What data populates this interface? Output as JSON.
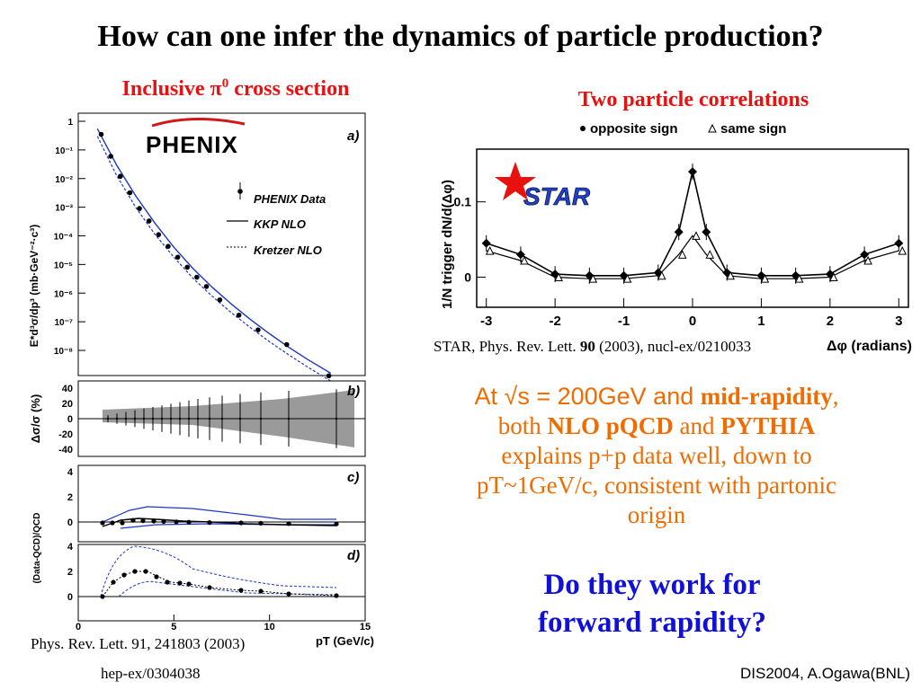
{
  "slide": {
    "title": "How can one infer the dynamics of particle production?",
    "footer_left": "hep-ex/0304038",
    "footer_right": "DIS2004, A.Ogawa(BNL)"
  },
  "left_figure": {
    "heading_prefix": "Inclusive ",
    "heading_pi": "π",
    "heading_sup": "0",
    "heading_suffix": " cross section",
    "logo": "PHENIX",
    "ylabel": "E*d³σ/dp³ (mb·GeV⁻²·c³)",
    "ylabel_b": "Δσ/σ (%)",
    "ylabel_cd": "(Data-QCD)/QCD",
    "xlabel": "pT (GeV/c)",
    "panel_a": "a)",
    "panel_b": "b)",
    "panel_c": "c)",
    "panel_d": "d)",
    "legend": [
      "PHENIX Data",
      "KKP NLO",
      "Kretzer NLO"
    ],
    "caption": "Phys. Rev. Lett. 91, 241803 (2003)"
  },
  "right_figure": {
    "heading": "Two particle correlations",
    "legend_opp": "opposite sign",
    "legend_same": "same sign",
    "logo": "STAR",
    "ylabel": "1/N trigger dN/d(Δφ)",
    "xlabel": "Δφ (radians)",
    "caption_prefix": "STAR, Phys. Rev. Lett. ",
    "caption_vol": "90",
    "caption_suffix": " (2003), nucl-ex/0210033"
  },
  "text": {
    "at": "At √s = 200GeV and ",
    "midrap": "mid-rapidity",
    "comma": ",",
    "both": "both ",
    "nlo": "NLO pQCD",
    "and": " and ",
    "pythia": "PYTHIA",
    "explains": "explains p+p data well, down to",
    "pt": "pT~1GeV/c,  consistent with partonic",
    "origin": "origin"
  },
  "question": [
    "Do they work for",
    "forward rapidity?"
  ],
  "colors": {
    "red": "#e8110f",
    "orange": "#f06b00",
    "blue": "#1010d8",
    "nlo_line": "#1c36c8"
  },
  "chart_data": [
    {
      "type": "scatter",
      "title": "",
      "xlabel": "pT (GeV/c)",
      "ylabel": "E*d³σ/dp³ (mb·GeV⁻²·c³)",
      "xlim": [
        0,
        15
      ],
      "ylim": [
        1e-09,
        3
      ],
      "log_y": true,
      "x_ticks": [
        0,
        5,
        10,
        15
      ],
      "y_tick_labels": [
        "1",
        "10⁻¹",
        "10⁻²",
        "10⁻³",
        "10⁻⁴",
        "10⁻⁵",
        "10⁻⁶",
        "10⁻⁷",
        "10⁻⁸"
      ],
      "series": [
        {
          "name": "PHENIX Data",
          "x": [
            1.2,
            1.7,
            2.2,
            2.7,
            3.2,
            3.7,
            4.2,
            4.7,
            5.2,
            5.7,
            6.2,
            6.7,
            7.4,
            8.4,
            9.4,
            10.9,
            13.1
          ],
          "y": [
            0.35,
            0.06,
            0.012,
            0.0032,
            0.0009,
            0.00033,
            0.00011,
            4.3e-05,
            1.8e-05,
            8e-06,
            3.6e-06,
            1.7e-06,
            5.8e-07,
            1.7e-07,
            5.2e-08,
            1.6e-08,
            1.3e-09
          ]
        },
        {
          "name": "KKP NLO",
          "style": "solid",
          "x": [
            1,
            2,
            3,
            4,
            5,
            6,
            7,
            8,
            9,
            10,
            11,
            12,
            13.2
          ],
          "y": [
            0.55,
            0.03,
            0.0025,
            0.00028,
            4e-05,
            7.2e-06,
            1.6e-06,
            4.2e-07,
            1.2e-07,
            3.8e-08,
            1.3e-08,
            4.8e-09,
            1.6e-09
          ]
        },
        {
          "name": "Kretzer NLO",
          "style": "dashed",
          "x": [
            1,
            2,
            3,
            4,
            5,
            6,
            7,
            8,
            9,
            10,
            11,
            12,
            13.2
          ],
          "y": [
            0.3,
            0.013,
            0.001,
            0.000115,
            1.8e-05,
            3.3e-06,
            7.8e-07,
            2.1e-07,
            6.2e-08,
            2e-08,
            7e-09,
            2.6e-09,
            8.5e-10
          ]
        }
      ]
    },
    {
      "type": "line",
      "title": "",
      "xlabel": "Δφ (radians)",
      "ylabel": "1/N trigger dN/d(Δφ)",
      "xlim": [
        -3.14,
        3.14
      ],
      "ylim": [
        -0.04,
        0.17
      ],
      "x_ticks": [
        -3,
        -2,
        -1,
        0,
        1,
        2,
        3
      ],
      "y_ticks": [
        0,
        0.1
      ],
      "series": [
        {
          "name": "opposite sign",
          "x": [
            -3.0,
            -2.5,
            -2.0,
            -1.5,
            -1.0,
            -0.5,
            -0.2,
            0,
            0.2,
            0.5,
            1.0,
            1.5,
            2.0,
            2.5,
            3.0
          ],
          "y": [
            0.045,
            0.03,
            0.004,
            0.002,
            0.002,
            0.006,
            0.06,
            0.14,
            0.06,
            0.006,
            0.002,
            0.002,
            0.004,
            0.03,
            0.045
          ]
        },
        {
          "name": "same sign",
          "x": [
            -3.0,
            -2.5,
            -2.0,
            -1.5,
            -1.0,
            -0.5,
            -0.2,
            0,
            0.2,
            0.5,
            1.0,
            1.5,
            2.0,
            2.5,
            3.0
          ],
          "y": [
            0.035,
            0.022,
            0.0,
            -0.002,
            -0.002,
            0.002,
            0.03,
            0.055,
            0.03,
            0.002,
            -0.002,
            -0.002,
            0.0,
            0.022,
            0.035
          ]
        }
      ]
    }
  ]
}
